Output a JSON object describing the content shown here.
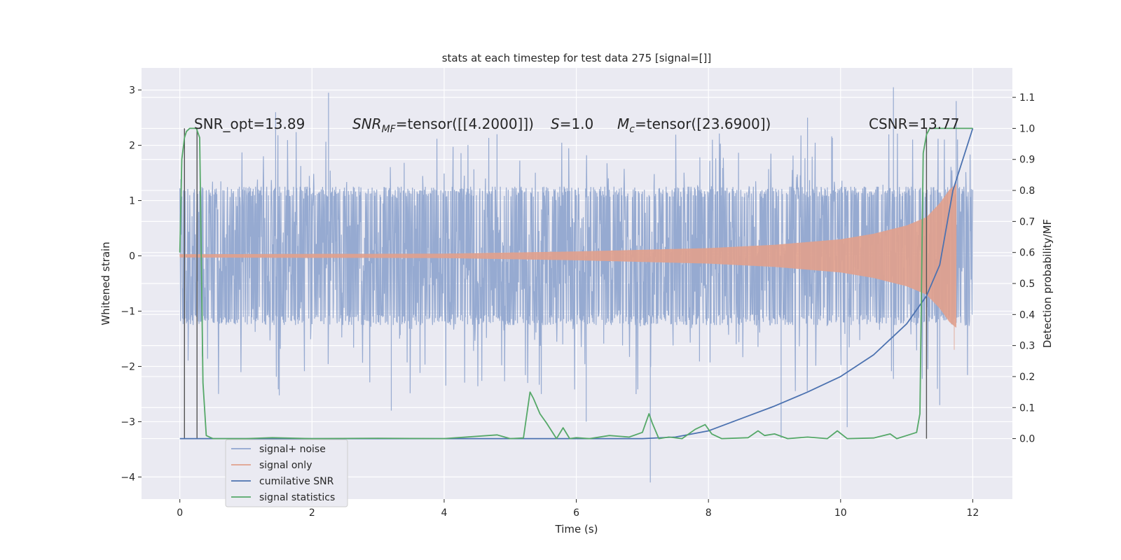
{
  "chart_data": {
    "type": "line",
    "title": "stats at each timestep for test data 275 [signal=[]]",
    "xlabel": "Time (s)",
    "ylabel": "Whitened strain",
    "y2label": "Detection probability/MF",
    "xlim": [
      -0.58,
      12.6
    ],
    "ylim": [
      -4.4,
      3.4
    ],
    "y2lim": [
      -0.195,
      1.195
    ],
    "x_ticks": [
      0,
      2,
      4,
      6,
      8,
      10,
      12
    ],
    "y_ticks": [
      -4,
      -3,
      -2,
      -1,
      0,
      1,
      2,
      3
    ],
    "y2_ticks": [
      0.0,
      0.1,
      0.2,
      0.3,
      0.4,
      0.5,
      0.6,
      0.7,
      0.8,
      0.9,
      1.0,
      1.1
    ],
    "tick_labels": {
      "x": [
        "0",
        "2",
        "4",
        "6",
        "8",
        "10",
        "12"
      ],
      "y": [
        "−4",
        "−3",
        "−2",
        "−1",
        "0",
        "1",
        "2",
        "3"
      ],
      "y2": [
        "0.0",
        "0.1",
        "0.2",
        "0.3",
        "0.4",
        "0.5",
        "0.6",
        "0.7",
        "0.8",
        "0.9",
        "1.0",
        "1.1"
      ]
    },
    "grid": true,
    "legend_position": "lower-left",
    "annotations": {
      "snr_opt": "SNR_opt=13.89",
      "snr_mf_base": "SNR",
      "snr_mf_sub": "MF",
      "snr_mf_rest": "=tensor([[4.2000]])",
      "s_label": "S",
      "s_value": "=1.0",
      "mc_base": "M",
      "mc_sub": "c",
      "mc_rest": "=tensor([23.6900])",
      "csnr": "CSNR=13.77"
    },
    "vertical_markers": [
      0.07,
      0.26,
      11.3
    ],
    "series": [
      {
        "name": "signal+ noise",
        "color": "#91a6cf",
        "axis": "left",
        "x_range": [
          0,
          12
        ],
        "amplitude_envelope": 1.25,
        "peak_max": 3.05,
        "peak_min": -4.1
      },
      {
        "name": "signal only",
        "color": "#e1a08c",
        "axis": "left",
        "x_range": [
          0,
          11.75
        ],
        "envelope_x": [
          0,
          4,
          6,
          8,
          9,
          10,
          10.5,
          11,
          11.3,
          11.5,
          11.65,
          11.75
        ],
        "envelope_y": [
          0.03,
          0.04,
          0.08,
          0.14,
          0.2,
          0.3,
          0.4,
          0.55,
          0.7,
          0.95,
          1.2,
          1.3
        ]
      },
      {
        "name": "cumilative SNR",
        "color": "#4c72b0",
        "axis": "right",
        "x": [
          0,
          7.0,
          7.5,
          8.0,
          8.5,
          9.0,
          9.5,
          10.0,
          10.5,
          11.0,
          11.3,
          11.5,
          11.7,
          12.0
        ],
        "y": [
          0.0,
          0.0,
          0.005,
          0.025,
          0.065,
          0.105,
          0.15,
          0.2,
          0.27,
          0.37,
          0.46,
          0.56,
          0.8,
          1.0
        ]
      },
      {
        "name": "signal statistics",
        "color": "#55a868",
        "axis": "right",
        "x": [
          0,
          0.03,
          0.07,
          0.1,
          0.15,
          0.2,
          0.25,
          0.3,
          0.35,
          0.4,
          0.45,
          0.5,
          1.0,
          1.4,
          2.0,
          3.0,
          4.0,
          4.8,
          5.0,
          5.2,
          5.3,
          5.35,
          5.45,
          5.55,
          5.7,
          5.8,
          5.9,
          6.0,
          6.2,
          6.5,
          6.8,
          7.0,
          7.1,
          7.15,
          7.25,
          7.4,
          7.6,
          7.8,
          7.95,
          8.05,
          8.2,
          8.6,
          8.75,
          8.85,
          9.0,
          9.2,
          9.5,
          9.8,
          9.95,
          10.1,
          10.5,
          10.75,
          10.85,
          11.0,
          11.15,
          11.2,
          11.25,
          11.3,
          11.35,
          11.4,
          11.5,
          11.8,
          12.0
        ],
        "y": [
          0.6,
          0.9,
          0.97,
          0.99,
          1.0,
          1.0,
          1.0,
          0.97,
          0.18,
          0.01,
          0.005,
          0.0,
          0.0,
          0.003,
          0.0,
          0.001,
          0.0,
          0.012,
          0.0,
          0.002,
          0.15,
          0.13,
          0.08,
          0.05,
          0.0,
          0.035,
          0.0,
          0.003,
          0.0,
          0.01,
          0.005,
          0.02,
          0.08,
          0.05,
          0.0,
          0.005,
          0.0,
          0.03,
          0.045,
          0.015,
          0.0,
          0.003,
          0.025,
          0.01,
          0.015,
          0.0,
          0.005,
          0.0,
          0.025,
          0.0,
          0.002,
          0.015,
          0.0,
          0.01,
          0.02,
          0.08,
          0.92,
          0.98,
          1.0,
          1.0,
          1.0,
          1.0,
          1.0
        ]
      }
    ]
  }
}
